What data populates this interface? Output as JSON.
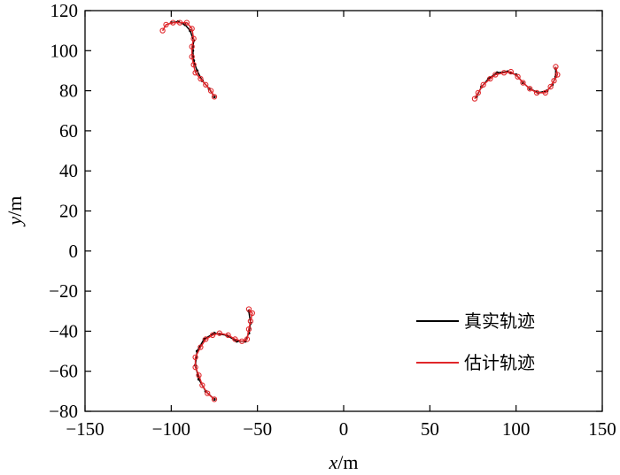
{
  "chart_data": {
    "type": "line",
    "xlabel_var": "x",
    "xlabel_unit": "/m",
    "ylabel_var": "y",
    "ylabel_unit": "/m",
    "xlim": [
      -150,
      150
    ],
    "ylim": [
      -80,
      120
    ],
    "xticks": [
      -150,
      -100,
      -50,
      0,
      50,
      100,
      150
    ],
    "xtick_labels": [
      "−150",
      "−100",
      "−50",
      "0",
      "50",
      "100",
      "150"
    ],
    "yticks": [
      -80,
      -60,
      -40,
      -20,
      0,
      20,
      40,
      60,
      80,
      100,
      120
    ],
    "ytick_labels": [
      "−80",
      "−60",
      "−40",
      "−20",
      "0",
      "20",
      "40",
      "60",
      "80",
      "100",
      "120"
    ],
    "grid": false,
    "legend_position": "lower-right",
    "series": [
      {
        "name": "真实轨迹",
        "color": "#000000",
        "tracks": [
          [
            [
              -100,
              114
            ],
            [
              -96,
              114.5
            ],
            [
              -92,
              113
            ],
            [
              -89,
              110
            ],
            [
              -87,
              105
            ],
            [
              -87.5,
              100
            ],
            [
              -87,
              95
            ],
            [
              -85,
              90
            ],
            [
              -82,
              85
            ],
            [
              -78,
              81
            ],
            [
              -75,
              77
            ]
          ],
          [
            [
              77,
              77
            ],
            [
              80,
              82
            ],
            [
              84,
              86
            ],
            [
              89,
              89
            ],
            [
              95,
              89.5
            ],
            [
              100,
              88
            ],
            [
              104,
              84
            ],
            [
              108,
              81
            ],
            [
              113,
              79
            ],
            [
              118,
              80
            ],
            [
              121,
              83
            ],
            [
              123,
              87
            ],
            [
              123,
              91
            ]
          ],
          [
            [
              -75,
              -74
            ],
            [
              -80,
              -70
            ],
            [
              -84,
              -64
            ],
            [
              -86,
              -57
            ],
            [
              -85,
              -50
            ],
            [
              -81,
              -44
            ],
            [
              -75,
              -41
            ],
            [
              -68,
              -42
            ],
            [
              -62,
              -45
            ],
            [
              -57,
              -45
            ],
            [
              -55,
              -41
            ],
            [
              -54,
              -36
            ],
            [
              -55,
              -30
            ]
          ]
        ]
      },
      {
        "name": "估计轨迹",
        "color": "#e0262a",
        "tracks": [
          [
            [
              -105,
              110
            ],
            [
              -103,
              113
            ],
            [
              -99,
              114
            ],
            [
              -95,
              114
            ],
            [
              -91,
              114
            ],
            [
              -88,
              111
            ],
            [
              -87,
              106
            ],
            [
              -88,
              102
            ],
            [
              -88,
              97
            ],
            [
              -87,
              93
            ],
            [
              -86,
              89
            ],
            [
              -83,
              86
            ],
            [
              -80,
              83
            ],
            [
              -77,
              80
            ],
            [
              -75,
              77
            ]
          ],
          [
            [
              76,
              76
            ],
            [
              78,
              79
            ],
            [
              81,
              83
            ],
            [
              85,
              86
            ],
            [
              88,
              88
            ],
            [
              93,
              89
            ],
            [
              97,
              89.5
            ],
            [
              101,
              87
            ],
            [
              104,
              84
            ],
            [
              108,
              81
            ],
            [
              112,
              79
            ],
            [
              117,
              79
            ],
            [
              120,
              82
            ],
            [
              122,
              85
            ],
            [
              124,
              88
            ],
            [
              123,
              92
            ]
          ],
          [
            [
              -75,
              -74
            ],
            [
              -79,
              -71
            ],
            [
              -82,
              -67
            ],
            [
              -84,
              -62
            ],
            [
              -86,
              -58
            ],
            [
              -86,
              -53
            ],
            [
              -83,
              -48
            ],
            [
              -80,
              -44
            ],
            [
              -76,
              -42
            ],
            [
              -72,
              -41
            ],
            [
              -67,
              -42
            ],
            [
              -63,
              -44
            ],
            [
              -59,
              -45
            ],
            [
              -56,
              -44
            ],
            [
              -55,
              -39
            ],
            [
              -54,
              -35
            ],
            [
              -53,
              -31
            ],
            [
              -55,
              -29
            ]
          ]
        ]
      }
    ]
  }
}
